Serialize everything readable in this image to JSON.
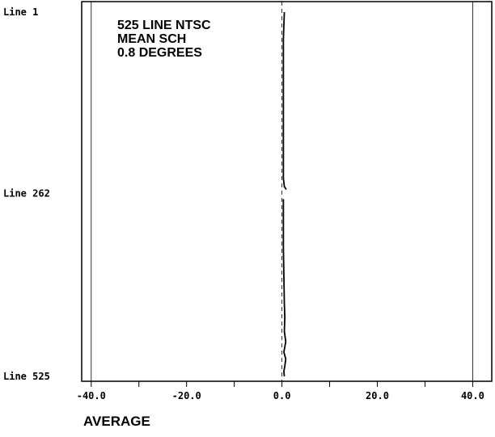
{
  "chart_data": {
    "type": "line",
    "title": "",
    "xlabel": "AVERAGE",
    "ylabel": "",
    "xlim": [
      -42,
      44
    ],
    "ylim": [
      1,
      525
    ],
    "y_inverted": true,
    "grid": false,
    "annotation_lines": [
      "525 LINE NTSC",
      "MEAN SCH",
      "0.8 DEGREES"
    ],
    "y_tick_labels": [
      {
        "label": "Line 1",
        "value": 1
      },
      {
        "label": "Line 262",
        "value": 262
      },
      {
        "label": "Line 525",
        "value": 525
      }
    ],
    "x_ticks": [
      -40,
      -30,
      -20,
      -10,
      0,
      10,
      20,
      30,
      40
    ],
    "x_tick_labels": [
      {
        "label": "-40.0",
        "value": -40
      },
      {
        "label": "-20.0",
        "value": -20
      },
      {
        "label": "0.0",
        "value": 0
      },
      {
        "label": "20.0",
        "value": 20
      },
      {
        "label": "40.0",
        "value": 40
      }
    ],
    "reference_lines": [
      {
        "x": -40,
        "style": "solid"
      },
      {
        "x": 0,
        "style": "dashed"
      },
      {
        "x": 40,
        "style": "solid"
      }
    ],
    "series": [
      {
        "segments": [
          [
            [
              0.5,
              1
            ],
            [
              0.4,
              20
            ],
            [
              0.3,
              40
            ],
            [
              0.3,
              80
            ],
            [
              0.3,
              120
            ],
            [
              0.3,
              160
            ],
            [
              0.3,
              200
            ],
            [
              0.3,
              240
            ],
            [
              0.5,
              252
            ],
            [
              0.9,
              256
            ]
          ],
          [
            [
              0.3,
              270
            ],
            [
              0.3,
              300
            ],
            [
              0.3,
              340
            ],
            [
              0.4,
              380
            ],
            [
              0.5,
              420
            ],
            [
              0.6,
              440
            ],
            [
              0.5,
              460
            ],
            [
              0.8,
              475
            ],
            [
              0.4,
              490
            ],
            [
              0.8,
              500
            ],
            [
              0.6,
              510
            ],
            [
              0.4,
              518
            ],
            [
              0.5,
              525
            ]
          ]
        ]
      }
    ]
  }
}
